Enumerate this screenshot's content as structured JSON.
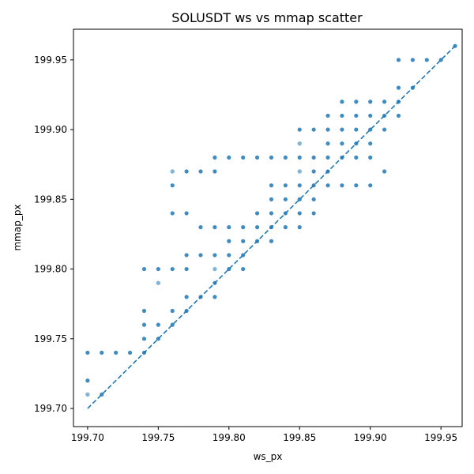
{
  "chart_data": {
    "type": "scatter",
    "title": "SOLUSDT ws vs mmap scatter",
    "xlabel": "ws_px",
    "ylabel": "mmap_px",
    "xlim": [
      199.69,
      199.965
    ],
    "ylim": [
      199.687,
      199.972
    ],
    "xticks": [
      199.7,
      199.75,
      199.8,
      199.85,
      199.9,
      199.95
    ],
    "yticks": [
      199.7,
      199.75,
      199.8,
      199.85,
      199.9,
      199.95
    ],
    "xtick_labels": [
      "199.70",
      "199.75",
      "199.80",
      "199.85",
      "199.90",
      "199.95"
    ],
    "ytick_labels": [
      "199.70",
      "199.75",
      "199.80",
      "199.85",
      "199.90",
      "199.95"
    ],
    "grid": false,
    "color": "#1f77b4",
    "reference_line": {
      "style": "dashed",
      "x": [
        199.7,
        199.96
      ],
      "y": [
        199.7,
        199.96
      ]
    },
    "points": [
      [
        199.7,
        199.74
      ],
      [
        199.7,
        199.72
      ],
      [
        199.7,
        199.71
      ],
      [
        199.71,
        199.74
      ],
      [
        199.71,
        199.71
      ],
      [
        199.72,
        199.74
      ],
      [
        199.73,
        199.74
      ],
      [
        199.74,
        199.8
      ],
      [
        199.74,
        199.77
      ],
      [
        199.74,
        199.76
      ],
      [
        199.74,
        199.75
      ],
      [
        199.74,
        199.74
      ],
      [
        199.75,
        199.8
      ],
      [
        199.75,
        199.79
      ],
      [
        199.75,
        199.76
      ],
      [
        199.75,
        199.75
      ],
      [
        199.76,
        199.87
      ],
      [
        199.76,
        199.86
      ],
      [
        199.76,
        199.84
      ],
      [
        199.76,
        199.8
      ],
      [
        199.76,
        199.77
      ],
      [
        199.76,
        199.76
      ],
      [
        199.77,
        199.87
      ],
      [
        199.77,
        199.84
      ],
      [
        199.77,
        199.81
      ],
      [
        199.77,
        199.8
      ],
      [
        199.77,
        199.78
      ],
      [
        199.77,
        199.77
      ],
      [
        199.78,
        199.87
      ],
      [
        199.78,
        199.83
      ],
      [
        199.78,
        199.81
      ],
      [
        199.78,
        199.78
      ],
      [
        199.79,
        199.88
      ],
      [
        199.79,
        199.87
      ],
      [
        199.79,
        199.83
      ],
      [
        199.79,
        199.81
      ],
      [
        199.79,
        199.8
      ],
      [
        199.79,
        199.79
      ],
      [
        199.79,
        199.78
      ],
      [
        199.8,
        199.88
      ],
      [
        199.8,
        199.83
      ],
      [
        199.8,
        199.82
      ],
      [
        199.8,
        199.81
      ],
      [
        199.8,
        199.8
      ],
      [
        199.81,
        199.88
      ],
      [
        199.81,
        199.83
      ],
      [
        199.81,
        199.82
      ],
      [
        199.81,
        199.81
      ],
      [
        199.81,
        199.8
      ],
      [
        199.82,
        199.88
      ],
      [
        199.82,
        199.84
      ],
      [
        199.82,
        199.83
      ],
      [
        199.82,
        199.82
      ],
      [
        199.83,
        199.88
      ],
      [
        199.83,
        199.86
      ],
      [
        199.83,
        199.85
      ],
      [
        199.83,
        199.84
      ],
      [
        199.83,
        199.83
      ],
      [
        199.83,
        199.82
      ],
      [
        199.84,
        199.88
      ],
      [
        199.84,
        199.86
      ],
      [
        199.84,
        199.85
      ],
      [
        199.84,
        199.84
      ],
      [
        199.84,
        199.83
      ],
      [
        199.85,
        199.9
      ],
      [
        199.85,
        199.89
      ],
      [
        199.85,
        199.88
      ],
      [
        199.85,
        199.87
      ],
      [
        199.85,
        199.86
      ],
      [
        199.85,
        199.85
      ],
      [
        199.85,
        199.84
      ],
      [
        199.85,
        199.83
      ],
      [
        199.86,
        199.9
      ],
      [
        199.86,
        199.88
      ],
      [
        199.86,
        199.87
      ],
      [
        199.86,
        199.86
      ],
      [
        199.86,
        199.85
      ],
      [
        199.86,
        199.84
      ],
      [
        199.87,
        199.91
      ],
      [
        199.87,
        199.9
      ],
      [
        199.87,
        199.89
      ],
      [
        199.87,
        199.88
      ],
      [
        199.87,
        199.87
      ],
      [
        199.87,
        199.86
      ],
      [
        199.88,
        199.92
      ],
      [
        199.88,
        199.91
      ],
      [
        199.88,
        199.9
      ],
      [
        199.88,
        199.89
      ],
      [
        199.88,
        199.88
      ],
      [
        199.88,
        199.86
      ],
      [
        199.89,
        199.92
      ],
      [
        199.89,
        199.91
      ],
      [
        199.89,
        199.9
      ],
      [
        199.89,
        199.89
      ],
      [
        199.89,
        199.88
      ],
      [
        199.89,
        199.86
      ],
      [
        199.9,
        199.92
      ],
      [
        199.9,
        199.91
      ],
      [
        199.9,
        199.9
      ],
      [
        199.9,
        199.89
      ],
      [
        199.9,
        199.88
      ],
      [
        199.9,
        199.86
      ],
      [
        199.91,
        199.92
      ],
      [
        199.91,
        199.91
      ],
      [
        199.91,
        199.9
      ],
      [
        199.91,
        199.87
      ],
      [
        199.92,
        199.95
      ],
      [
        199.92,
        199.93
      ],
      [
        199.92,
        199.92
      ],
      [
        199.92,
        199.91
      ],
      [
        199.93,
        199.95
      ],
      [
        199.93,
        199.93
      ],
      [
        199.94,
        199.95
      ],
      [
        199.95,
        199.95
      ],
      [
        199.96,
        199.96
      ]
    ],
    "light_points": [
      [
        199.7,
        199.71
      ],
      [
        199.75,
        199.79
      ],
      [
        199.76,
        199.87
      ],
      [
        199.79,
        199.8
      ],
      [
        199.85,
        199.89
      ],
      [
        199.85,
        199.87
      ]
    ]
  }
}
